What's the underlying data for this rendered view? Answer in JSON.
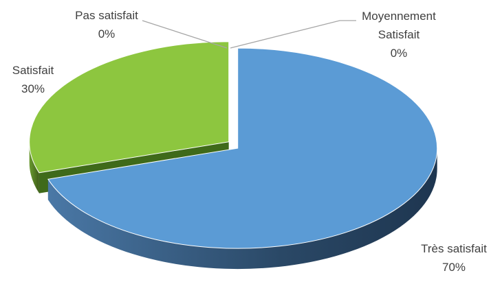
{
  "chart_data": {
    "type": "pie3d",
    "categories": [
      "Moyennement Satisfait",
      "Très satisfait",
      "Satisfait",
      "Pas satisfait"
    ],
    "values": [
      0,
      70,
      30,
      0
    ],
    "value_labels": [
      "0%",
      "70%",
      "30%",
      "0%"
    ],
    "colors": [
      "#a5a5a5",
      "#5b9bd5",
      "#8dc63f",
      "#ed7d31"
    ]
  }
}
